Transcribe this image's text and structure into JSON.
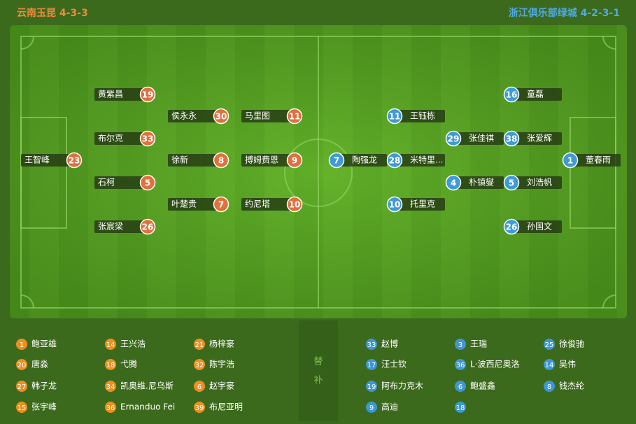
{
  "home": {
    "title": "云南玉昆 4-3-3",
    "players": [
      {
        "number": "23",
        "name": "王智峰"
      },
      {
        "number": "19",
        "name": "黄紫昌"
      },
      {
        "number": "33",
        "name": "布尔克"
      },
      {
        "number": "5",
        "name": "石柯"
      },
      {
        "number": "26",
        "name": "张宸梁"
      },
      {
        "number": "30",
        "name": "侯永永"
      },
      {
        "number": "8",
        "name": "徐新"
      },
      {
        "number": "7",
        "name": "叶楚贵"
      },
      {
        "number": "11",
        "name": "马里图"
      },
      {
        "number": "9",
        "name": "搏姆费恩"
      },
      {
        "number": "10",
        "name": "约尼塔"
      }
    ],
    "subs": [
      {
        "number": "1",
        "name": "鲍亚雄"
      },
      {
        "number": "20",
        "name": "唐淼"
      },
      {
        "number": "27",
        "name": "韩子龙"
      },
      {
        "number": "15",
        "name": "张宇峰"
      },
      {
        "number": "14",
        "name": "王兴浩"
      },
      {
        "number": "18",
        "name": "弋腾"
      },
      {
        "number": "34",
        "name": "凯奥维.尼乌斯"
      },
      {
        "number": "36",
        "name": "Ernanduo Fei"
      },
      {
        "number": "21",
        "name": "杨梓豪"
      },
      {
        "number": "32",
        "name": "陈宇浩"
      },
      {
        "number": "6",
        "name": "赵宇豪"
      },
      {
        "number": "39",
        "name": "布尼亚明"
      }
    ]
  },
  "away": {
    "title": "浙江俱乐部绿城 4-2-3-1",
    "players": [
      {
        "number": "11",
        "name": "王钰栋"
      },
      {
        "number": "7",
        "name": "陶强龙"
      },
      {
        "number": "28",
        "name": "米特里..."
      },
      {
        "number": "10",
        "name": "托里克"
      },
      {
        "number": "29",
        "name": "张佳祺"
      },
      {
        "number": "4",
        "name": "朴镇燮"
      },
      {
        "number": "16",
        "name": "童磊"
      },
      {
        "number": "38",
        "name": "张爱辉"
      },
      {
        "number": "5",
        "name": "刘浩帆"
      },
      {
        "number": "26",
        "name": "孙国文"
      },
      {
        "number": "1",
        "name": "董春雨"
      }
    ],
    "subs": [
      {
        "number": "33",
        "name": "赵博"
      },
      {
        "number": "17",
        "name": "汪士钦"
      },
      {
        "number": "19",
        "name": "阿布力克木"
      },
      {
        "number": "9",
        "name": "高迪"
      },
      {
        "number": "3",
        "name": "王瑞"
      },
      {
        "number": "36",
        "name": "L·波西尼奥洛"
      },
      {
        "number": "6",
        "name": "鲍盛鑫"
      },
      {
        "number": "18"
      },
      {
        "number": "25",
        "name": "徐俊驰"
      },
      {
        "number": "14",
        "name": "吴伟"
      },
      {
        "number": "8",
        "name": "钱杰纶"
      }
    ]
  },
  "subs_label": [
    "替",
    "补"
  ]
}
